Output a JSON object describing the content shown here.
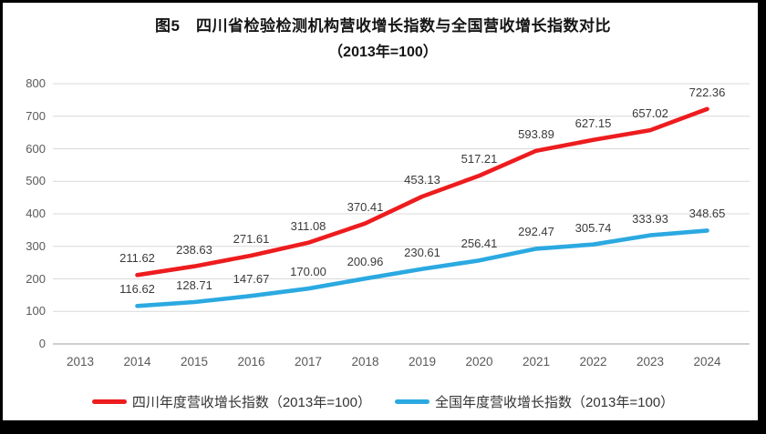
{
  "frame": {
    "border_color": "#000000"
  },
  "chart_data": {
    "type": "line",
    "title": "图5　四川省检验检测机构营收增长指数与全国营收增长指数对比",
    "subtitle": "（2013年=100）",
    "xlabel": "",
    "ylabel": "",
    "ylim": [
      0,
      800
    ],
    "ytick_step": 100,
    "grid": "horizontal",
    "legend_position": "bottom",
    "gridline_color": "#d9d9d9",
    "axis_line_color": "#bfbfbf",
    "tick_label_color": "#595959",
    "data_label_color": "#3a3a3a",
    "categories": [
      "2013",
      "2014",
      "2015",
      "2016",
      "2017",
      "2018",
      "2019",
      "2020",
      "2021",
      "2022",
      "2023",
      "2024"
    ],
    "series": [
      {
        "name": "四川年度营收增长指数（2013年=100）",
        "color": "#ed1c1e",
        "values": [
          null,
          211.62,
          238.63,
          271.61,
          311.08,
          370.41,
          453.13,
          517.21,
          593.89,
          627.15,
          657.02,
          722.36
        ],
        "labels": [
          "",
          "211.62",
          "238.63",
          "271.61",
          "311.08",
          "370.41",
          "453.13",
          "517.21",
          "593.89",
          "627.15",
          "657.02",
          "722.36"
        ]
      },
      {
        "name": "全国年度营收增长指数（2013年=100）",
        "color": "#2ba9e1",
        "values": [
          null,
          116.62,
          128.71,
          147.67,
          170,
          200.96,
          230.61,
          256.41,
          292.47,
          305.74,
          333.93,
          348.65
        ],
        "labels": [
          "",
          "116.62",
          "128.71",
          "147.67",
          "170.00",
          "200.96",
          "230.61",
          "256.41",
          "292.47",
          "305.74",
          "333.93",
          "348.65"
        ]
      }
    ]
  }
}
